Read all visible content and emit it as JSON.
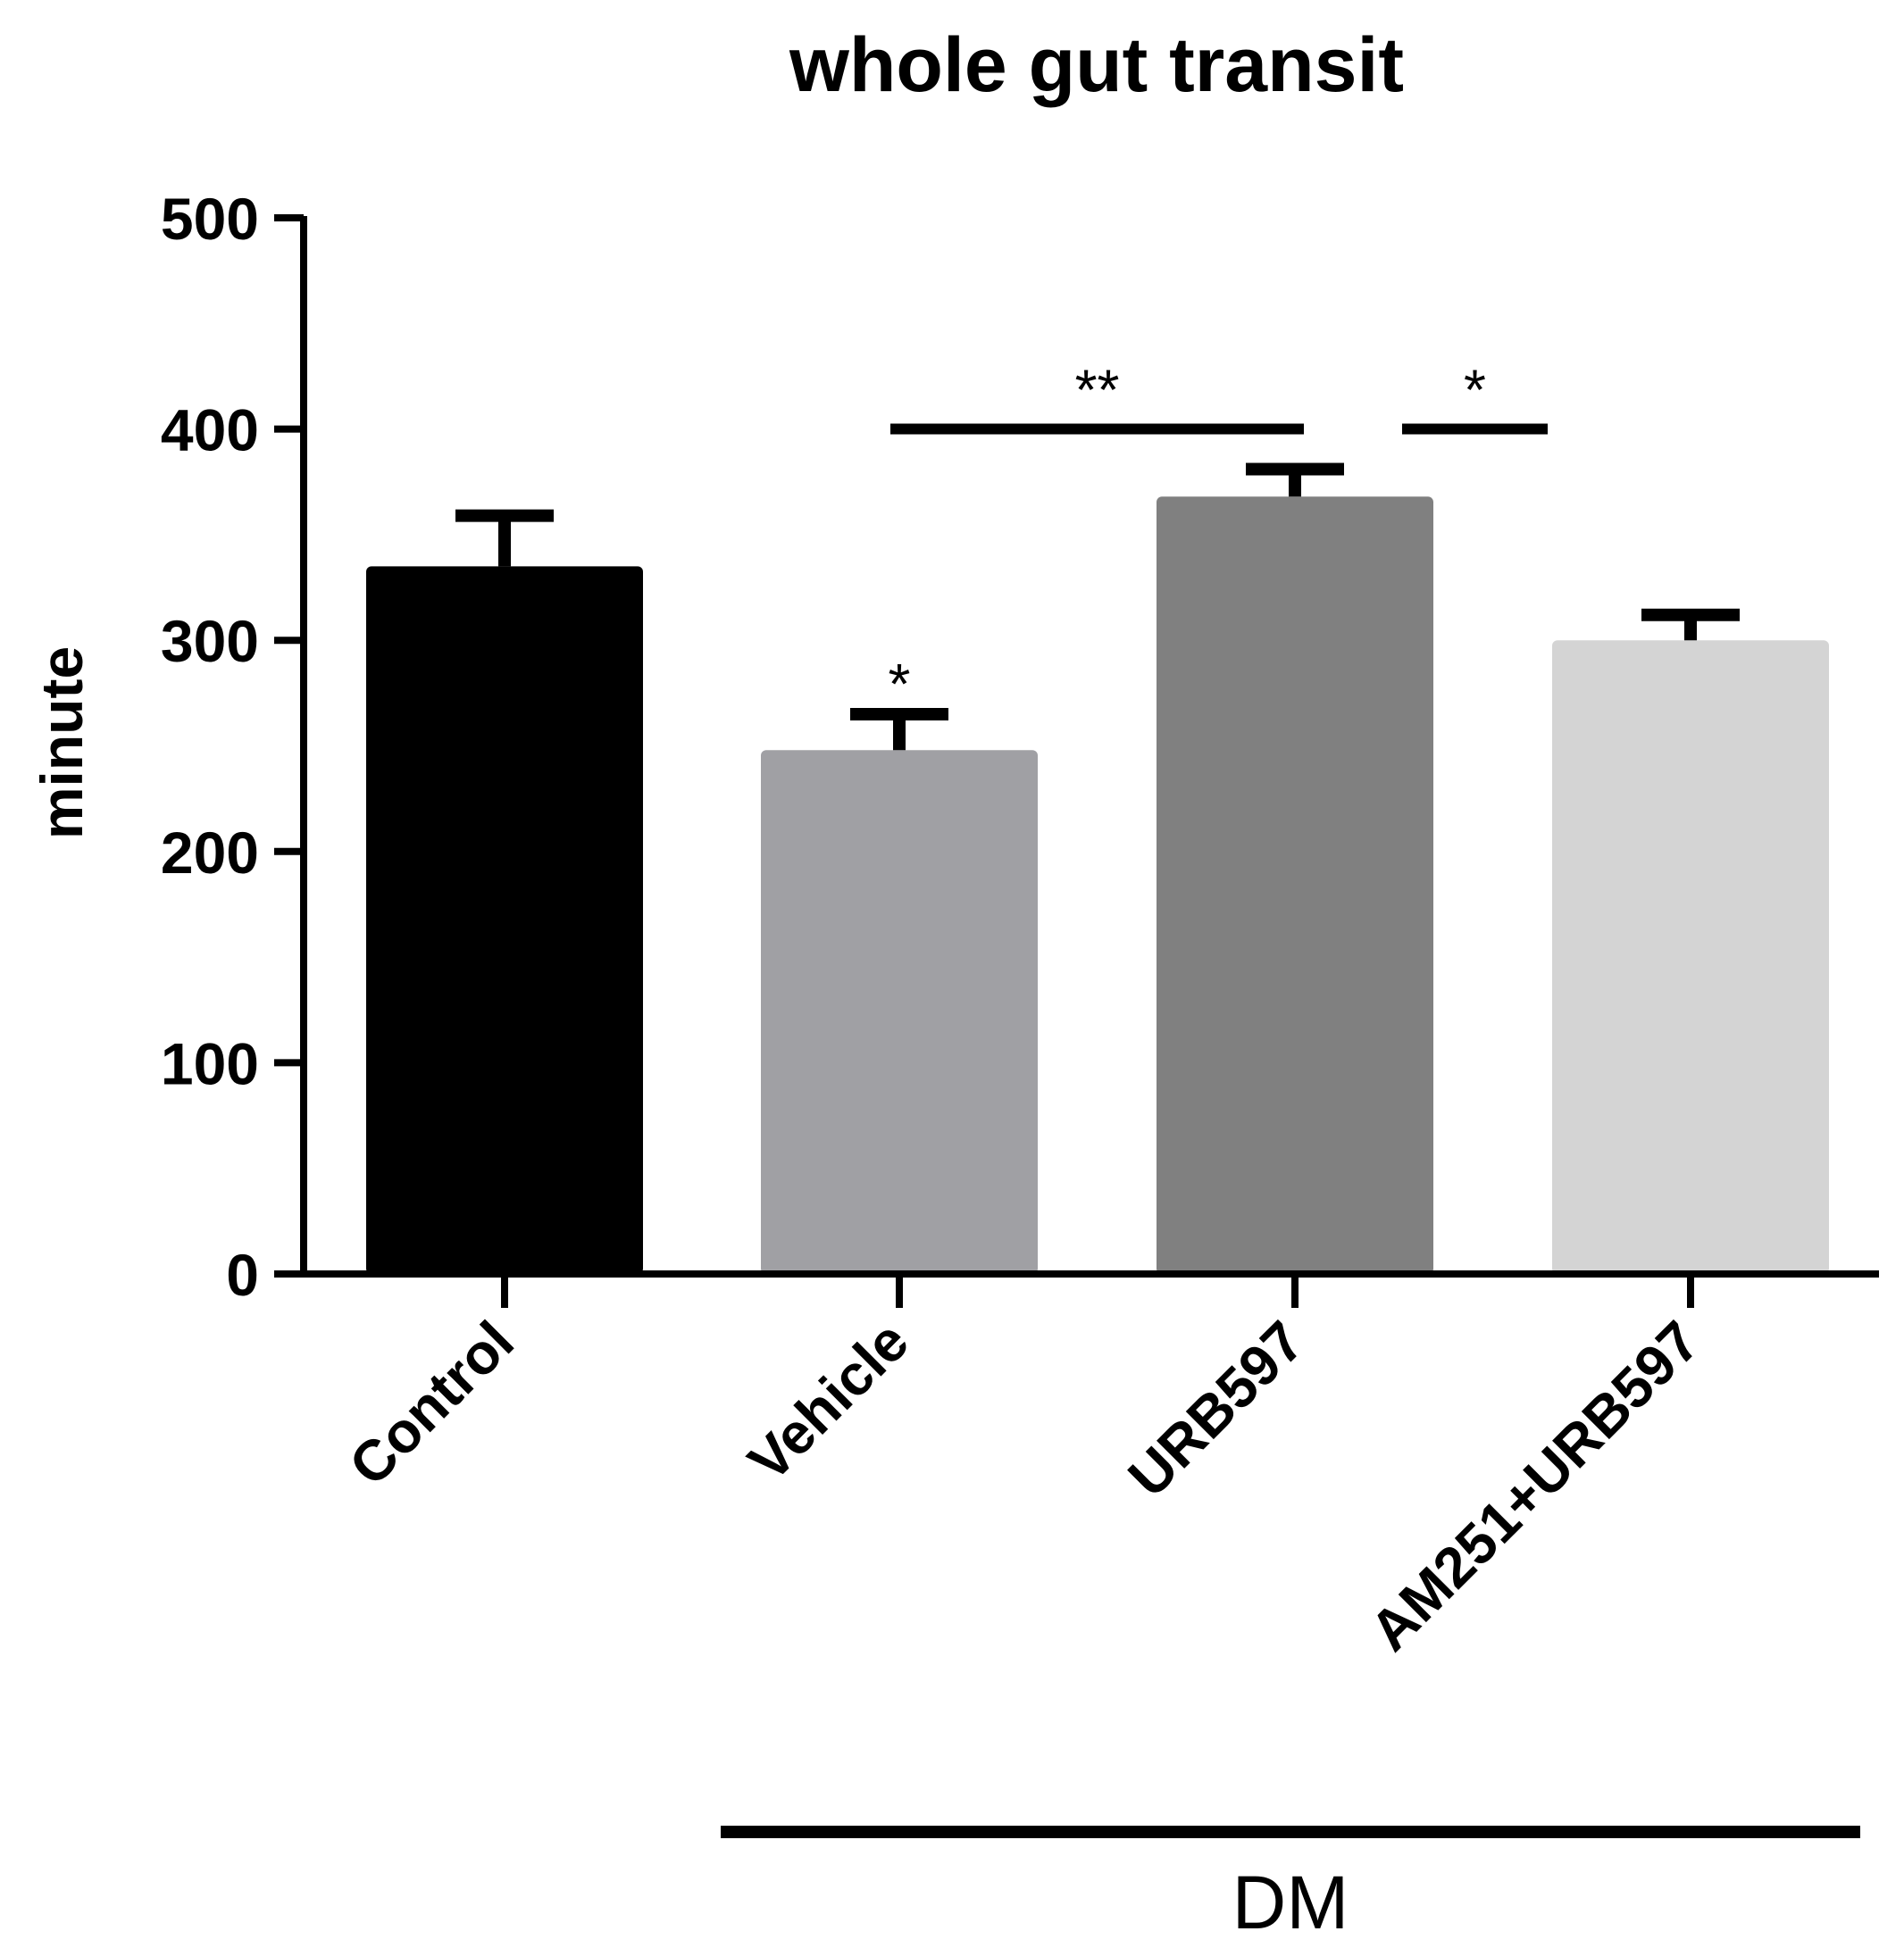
{
  "chart_data": {
    "type": "bar",
    "title": "whole gut transit",
    "ylabel": "minute",
    "xlabel": "",
    "ylim": [
      0,
      500
    ],
    "yticks": [
      0,
      100,
      200,
      300,
      400,
      500
    ],
    "grid": false,
    "categories": [
      "Control",
      "Vehicle",
      "URB597",
      "AM251+URB597"
    ],
    "values": [
      335,
      248,
      368,
      300
    ],
    "errors": [
      24,
      17,
      13,
      12
    ],
    "bar_colors": [
      "#000000",
      "#a0a0a4",
      "#808080",
      "#d4d4d4"
    ],
    "annotations": [
      {
        "label": "*",
        "category": "Vehicle"
      },
      {
        "label": "**",
        "from": "Vehicle",
        "to": "URB597"
      },
      {
        "label": "*",
        "from": "URB597",
        "to": "AM251+URB597"
      }
    ],
    "group": {
      "label": "DM",
      "categories": [
        "Vehicle",
        "URB597",
        "AM251+URB597"
      ]
    }
  }
}
